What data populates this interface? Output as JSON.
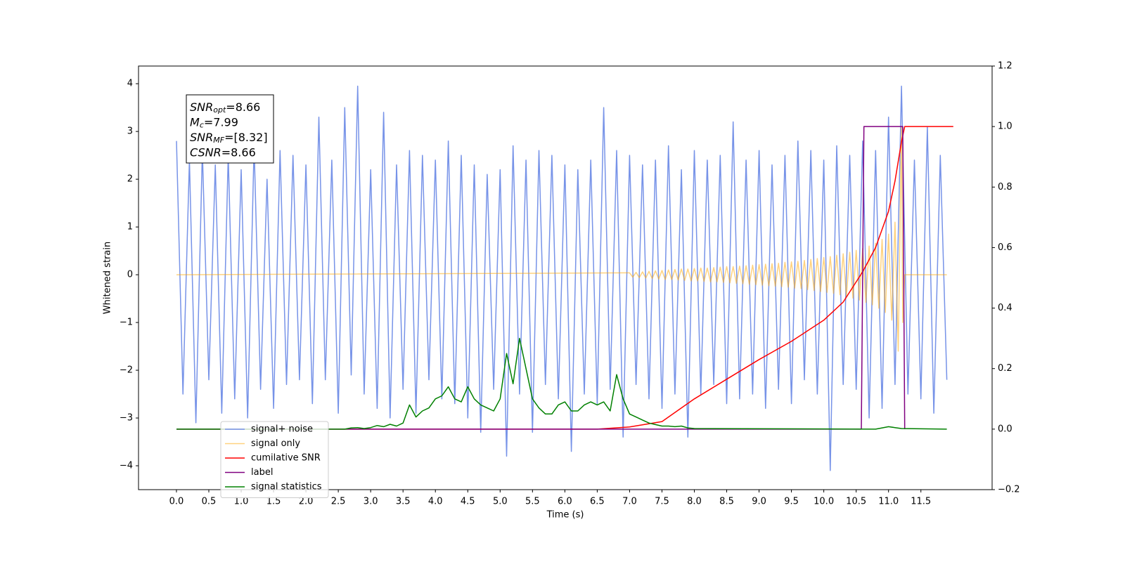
{
  "chart_data": {
    "type": "line",
    "xlabel": "Time (s)",
    "ylabel": "Whitened strain",
    "xlim": [
      -0.586,
      12.6
    ],
    "ylim": [
      -4.5,
      4.37
    ],
    "y2lim": [
      -0.2,
      1.2
    ],
    "xticks": [
      {
        "value": 0,
        "label": "0.0"
      },
      0.5,
      {
        "value": 1,
        "label": "1.0"
      },
      1.5,
      {
        "value": 2,
        "label": "2.0"
      },
      2.5,
      {
        "value": 3,
        "label": "3.0"
      },
      3.5,
      {
        "value": 4,
        "label": "4.0"
      },
      4.5,
      {
        "value": 5,
        "label": "5.0"
      },
      5.5,
      {
        "value": 6,
        "label": "6.0"
      },
      6.5,
      {
        "value": 7,
        "label": "7.0"
      },
      7.5,
      {
        "value": 8,
        "label": "8.0"
      },
      8.5,
      {
        "value": 9,
        "label": "9.0"
      },
      9.5,
      {
        "value": 10,
        "label": "10.0"
      },
      10.5,
      {
        "value": 11,
        "label": "11.0"
      },
      11.5
    ],
    "yticks": [
      {
        "value": -4,
        "label": "−4"
      },
      {
        "value": -3,
        "label": "−3"
      },
      {
        "value": -2,
        "label": "−2"
      },
      {
        "value": -1,
        "label": "−1"
      },
      0,
      1,
      2,
      3,
      4
    ],
    "y2ticks": [
      {
        "value": -0.2,
        "label": "−0.2"
      },
      {
        "value": 0,
        "label": "0.0"
      },
      0.2,
      0.4,
      0.6,
      0.8,
      {
        "value": 1,
        "label": "1.0"
      },
      1.2
    ],
    "grid": false,
    "legend": "lower left",
    "annotation": [
      {
        "main": "SNR",
        "sub": "opt",
        "text": "=8.66"
      },
      {
        "main": "M",
        "sub": "c",
        "text": "=7.99"
      },
      {
        "main": "SNR",
        "sub": "MF",
        "text": "=[8.32]"
      },
      {
        "main": "CSNR",
        "text": "=8.66"
      }
    ],
    "series": [
      {
        "name": "signal+ noise",
        "color": "#7793e8",
        "axis": "y",
        "x": [
          0,
          0.1,
          0.2,
          0.3,
          0.4,
          0.5,
          0.6,
          0.7,
          0.8,
          0.9,
          1,
          1.1,
          1.2,
          1.3,
          1.4,
          1.5,
          1.6,
          1.7,
          1.8,
          1.9,
          2,
          2.1,
          2.2,
          2.3,
          2.4,
          2.5,
          2.6,
          2.7,
          2.8,
          2.9,
          3,
          3.1,
          3.2,
          3.3,
          3.4,
          3.5,
          3.6,
          3.7,
          3.8,
          3.9,
          4,
          4.1,
          4.2,
          4.3,
          4.4,
          4.5,
          4.6,
          4.7,
          4.8,
          4.9,
          5,
          5.1,
          5.2,
          5.3,
          5.4,
          5.5,
          5.6,
          5.7,
          5.8,
          5.9,
          6,
          6.1,
          6.2,
          6.3,
          6.4,
          6.5,
          6.6,
          6.7,
          6.8,
          6.9,
          7,
          7.1,
          7.2,
          7.3,
          7.4,
          7.5,
          7.6,
          7.7,
          7.8,
          7.9,
          8,
          8.1,
          8.2,
          8.3,
          8.4,
          8.5,
          8.6,
          8.7,
          8.8,
          8.9,
          9,
          9.1,
          9.2,
          9.3,
          9.4,
          9.5,
          9.6,
          9.7,
          9.8,
          9.9,
          10,
          10.1,
          10.2,
          10.3,
          10.4,
          10.5,
          10.6,
          10.7,
          10.8,
          10.9,
          11,
          11.1,
          11.2,
          11.3,
          11.4,
          11.5,
          11.6,
          11.7,
          11.8,
          11.9
        ],
        "values": [
          2.8,
          -2.5,
          2.4,
          -3.1,
          2.6,
          -2.2,
          2.3,
          -2.9,
          2.5,
          -2.6,
          2.2,
          -3.0,
          2.7,
          -2.4,
          2.0,
          -2.8,
          2.6,
          -2.3,
          2.5,
          -2.2,
          2.3,
          -2.7,
          3.3,
          -2.2,
          2.4,
          -2.9,
          3.5,
          -2.1,
          3.95,
          -2.5,
          2.2,
          -2.8,
          3.4,
          -3.0,
          2.3,
          -2.4,
          2.6,
          -2.9,
          2.5,
          -2.2,
          2.4,
          -2.6,
          2.8,
          -2.7,
          2.5,
          -3.0,
          2.3,
          -3.3,
          2.1,
          -2.4,
          2.2,
          -3.8,
          2.7,
          -2.5,
          2.4,
          -3.3,
          2.6,
          -2.3,
          2.5,
          -2.6,
          2.3,
          -3.7,
          2.2,
          -2.5,
          2.4,
          -2.7,
          3.5,
          -2.4,
          2.6,
          -3.4,
          2.5,
          -2.3,
          2.3,
          -2.6,
          2.4,
          -2.8,
          2.7,
          -2.5,
          2.2,
          -3.4,
          2.6,
          -2.5,
          2.4,
          -2.3,
          2.5,
          -2.7,
          3.2,
          -2.6,
          2.4,
          -2.5,
          2.6,
          -2.8,
          2.3,
          -2.4,
          2.5,
          -2.7,
          2.8,
          -2.2,
          2.6,
          -2.5,
          2.4,
          -4.1,
          2.7,
          -2.3,
          2.5,
          -2.4,
          2.8,
          -3.0,
          2.6,
          -2.8,
          3.3,
          -2.3,
          3.95,
          -2.5,
          2.4,
          -2.6,
          3.1,
          -2.9,
          2.5,
          -2.2
        ]
      },
      {
        "name": "signal only",
        "color": "#ffa500",
        "alpha": 0.5,
        "axis": "y",
        "x": [
          0,
          7,
          7.05,
          7.1,
          7.15,
          7.2,
          7.25,
          7.3,
          7.35,
          7.4,
          7.45,
          7.5,
          7.55,
          7.6,
          7.65,
          7.7,
          7.75,
          7.8,
          7.85,
          7.9,
          7.95,
          8,
          8.05,
          8.1,
          8.15,
          8.2,
          8.25,
          8.3,
          8.35,
          8.4,
          8.45,
          8.5,
          8.55,
          8.6,
          8.65,
          8.7,
          8.75,
          8.8,
          8.85,
          8.9,
          8.95,
          9,
          9.05,
          9.1,
          9.15,
          9.2,
          9.25,
          9.3,
          9.35,
          9.4,
          9.45,
          9.5,
          9.55,
          9.6,
          9.65,
          9.7,
          9.75,
          9.8,
          9.85,
          9.9,
          9.95,
          10,
          10.05,
          10.1,
          10.15,
          10.2,
          10.25,
          10.3,
          10.35,
          10.4,
          10.45,
          10.5,
          10.55,
          10.6,
          10.65,
          10.7,
          10.75,
          10.8,
          10.85,
          10.9,
          10.95,
          11,
          11.05,
          11.1,
          11.15,
          11.2,
          11.22,
          11.25,
          11.9
        ],
        "values": [
          0,
          0.04,
          -0.05,
          0.05,
          -0.06,
          0.06,
          -0.07,
          0.07,
          -0.08,
          0.08,
          -0.09,
          0.09,
          -0.1,
          0.1,
          -0.1,
          0.11,
          -0.11,
          0.12,
          -0.12,
          0.12,
          -0.13,
          0.13,
          -0.13,
          0.14,
          -0.14,
          0.14,
          -0.15,
          0.15,
          -0.15,
          0.16,
          -0.16,
          0.17,
          -0.17,
          0.17,
          -0.18,
          0.18,
          -0.19,
          0.19,
          -0.2,
          0.2,
          -0.21,
          0.21,
          -0.22,
          0.22,
          -0.23,
          0.23,
          -0.24,
          0.24,
          -0.25,
          0.26,
          -0.26,
          0.27,
          -0.28,
          0.28,
          -0.29,
          0.3,
          -0.31,
          0.32,
          -0.33,
          0.34,
          -0.35,
          0.36,
          -0.37,
          0.38,
          -0.39,
          0.41,
          -0.42,
          0.44,
          -0.45,
          0.47,
          -0.49,
          0.51,
          -0.53,
          0.55,
          -0.58,
          0.6,
          -0.63,
          0.66,
          -0.7,
          0.74,
          -0.79,
          0.85,
          -0.95,
          1.1,
          -1.6,
          3.1,
          -1.0,
          0,
          0
        ]
      },
      {
        "name": "cumilative SNR",
        "color": "#ff0000",
        "axis": "y2",
        "x": [
          0,
          6.5,
          7,
          7.5,
          8,
          8.5,
          9,
          9.5,
          10,
          10.3,
          10.6,
          10.8,
          11,
          11.1,
          11.2,
          11.25,
          12
        ],
        "values": [
          0,
          0,
          0.007,
          0.025,
          0.1,
          0.165,
          0.23,
          0.29,
          0.36,
          0.42,
          0.52,
          0.6,
          0.72,
          0.82,
          0.95,
          1.0,
          1.0
        ]
      },
      {
        "name": "label",
        "color": "#800080",
        "axis": "y2",
        "x": [
          0,
          10.58,
          10.62,
          11.22,
          11.25
        ],
        "values": [
          0,
          0,
          1,
          1,
          0
        ]
      },
      {
        "name": "signal statistics",
        "color": "#008000",
        "axis": "y2",
        "x": [
          0,
          2.6,
          2.7,
          2.8,
          2.9,
          3,
          3.1,
          3.2,
          3.3,
          3.4,
          3.5,
          3.6,
          3.7,
          3.8,
          3.9,
          4,
          4.1,
          4.2,
          4.3,
          4.4,
          4.5,
          4.6,
          4.7,
          4.8,
          4.9,
          5,
          5.1,
          5.2,
          5.3,
          5.4,
          5.5,
          5.6,
          5.7,
          5.8,
          5.9,
          6,
          6.1,
          6.2,
          6.3,
          6.4,
          6.5,
          6.6,
          6.7,
          6.8,
          6.9,
          7,
          7.1,
          7.2,
          7.3,
          7.4,
          7.5,
          7.6,
          7.7,
          7.8,
          7.9,
          8,
          10.8,
          10.9,
          11,
          11.1,
          11.2,
          11.9
        ],
        "values": [
          0,
          0,
          0.004,
          0.005,
          0.002,
          0.005,
          0.012,
          0.008,
          0.016,
          0.01,
          0.02,
          0.08,
          0.04,
          0.06,
          0.07,
          0.1,
          0.11,
          0.14,
          0.1,
          0.09,
          0.14,
          0.1,
          0.08,
          0.07,
          0.06,
          0.1,
          0.25,
          0.15,
          0.3,
          0.2,
          0.1,
          0.07,
          0.05,
          0.05,
          0.08,
          0.09,
          0.06,
          0.06,
          0.08,
          0.09,
          0.08,
          0.09,
          0.06,
          0.18,
          0.1,
          0.05,
          0.04,
          0.03,
          0.02,
          0.015,
          0.01,
          0.01,
          0.008,
          0.01,
          0.004,
          0.002,
          0,
          0.004,
          0.008,
          0.005,
          0.002,
          0
        ]
      }
    ]
  }
}
